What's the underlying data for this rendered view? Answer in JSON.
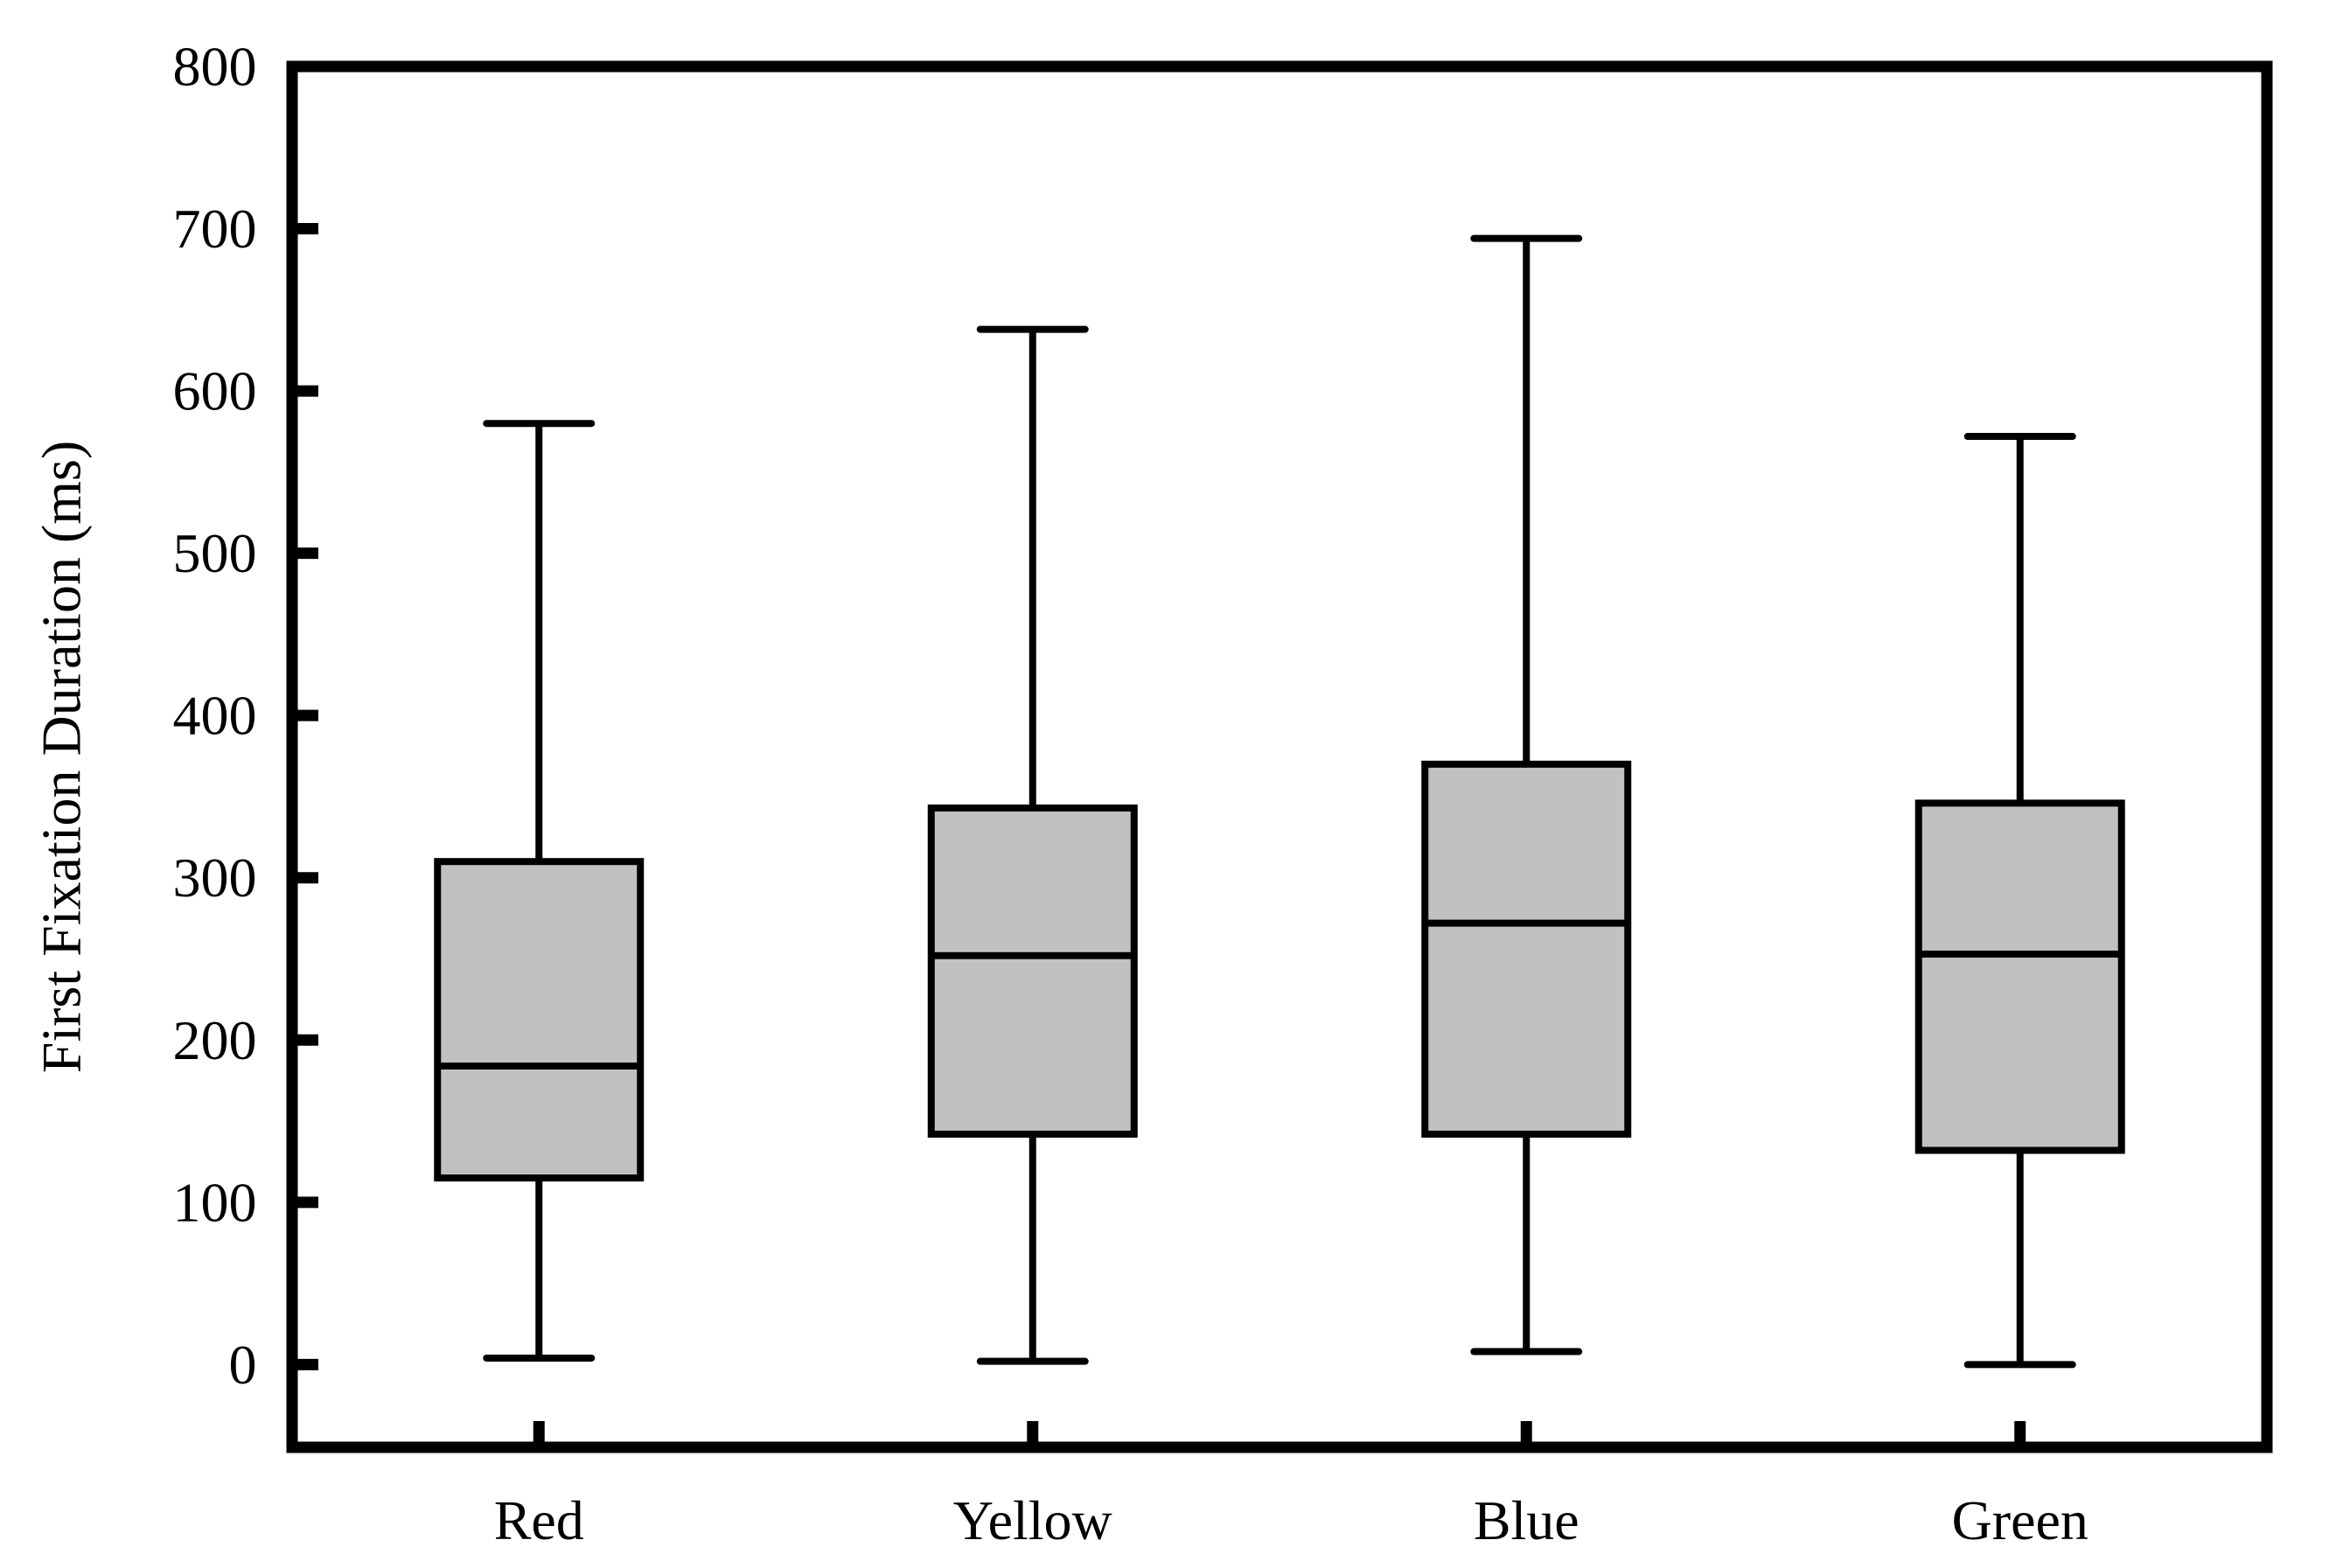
{
  "figure": {
    "background": "#ffffff",
    "axis_color": "#000000",
    "box_fill": "#c1c1c1"
  },
  "chart_data": {
    "type": "box",
    "title": "",
    "xlabel": "",
    "ylabel": "First Fixation Duration (ms)",
    "categories": [
      "Red",
      "Yellow",
      "Blue",
      "Green"
    ],
    "ylim": [
      -51,
      800
    ],
    "yticks": [
      800,
      700,
      600,
      500,
      400,
      300,
      200,
      100,
      0
    ],
    "grid": false,
    "legend": null,
    "series": [
      {
        "category": "Red",
        "min": 4,
        "q1": 115,
        "median": 184,
        "q3": 310,
        "max": 580
      },
      {
        "category": "Yellow",
        "min": 2,
        "q1": 142,
        "median": 252,
        "q3": 343,
        "max": 638
      },
      {
        "category": "Blue",
        "min": 8,
        "q1": 142,
        "median": 272,
        "q3": 370,
        "max": 694
      },
      {
        "category": "Green",
        "min": 0,
        "q1": 132,
        "median": 253,
        "q3": 346,
        "max": 572
      }
    ]
  }
}
